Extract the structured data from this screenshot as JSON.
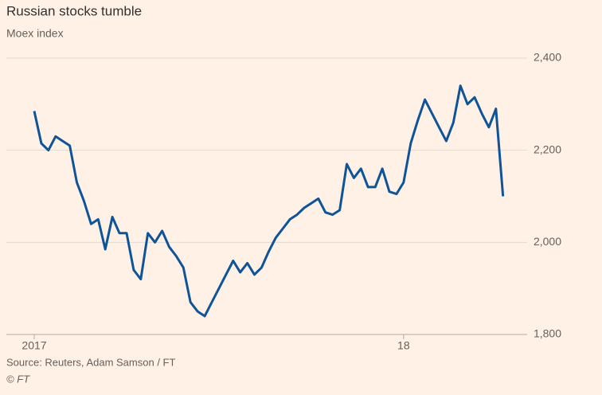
{
  "chart_data": {
    "type": "line",
    "title": "Russian stocks tumble",
    "subtitle": "Moex index",
    "source": "Source: Reuters, Adam Samson / FT",
    "credit": "© FT",
    "categories": [
      "2017",
      null,
      null,
      null,
      null,
      null,
      null,
      null,
      null,
      null,
      null,
      null,
      null,
      null,
      null,
      null,
      null,
      null,
      null,
      null,
      null,
      null,
      null,
      null,
      null,
      null,
      null,
      null,
      null,
      null,
      null,
      null,
      null,
      null,
      null,
      null,
      null,
      null,
      null,
      null,
      null,
      null,
      null,
      null,
      null,
      null,
      null,
      null,
      null,
      null,
      null,
      null,
      "18",
      null,
      null,
      null,
      null,
      null,
      null,
      null,
      null,
      null,
      null,
      null,
      null,
      null,
      null
    ],
    "series": [
      {
        "name": "Moex index",
        "color": "#0f5499",
        "values": [
          2285,
          2215,
          2200,
          2230,
          2220,
          2210,
          2130,
          2090,
          2040,
          2050,
          1985,
          2055,
          2020,
          2020,
          1940,
          1920,
          2020,
          2000,
          2025,
          1990,
          1970,
          1945,
          1870,
          1850,
          1840,
          1870,
          1900,
          1930,
          1960,
          1935,
          1955,
          1930,
          1945,
          1980,
          2010,
          2030,
          2050,
          2060,
          2075,
          2085,
          2095,
          2065,
          2060,
          2070,
          2170,
          2140,
          2160,
          2120,
          2120,
          2160,
          2110,
          2105,
          2130,
          2215,
          2265,
          2310,
          2280,
          2250,
          2220,
          2260,
          2340,
          2300,
          2315,
          2280,
          2250,
          2290,
          2100
        ]
      }
    ],
    "ylim": [
      1800,
      2400
    ],
    "yticks": [
      {
        "value": 1800,
        "label": "1,800"
      },
      {
        "value": 2000,
        "label": "2,000"
      },
      {
        "value": 2200,
        "label": "2,200"
      },
      {
        "value": 2400,
        "label": "2,400"
      }
    ],
    "grid": true
  }
}
